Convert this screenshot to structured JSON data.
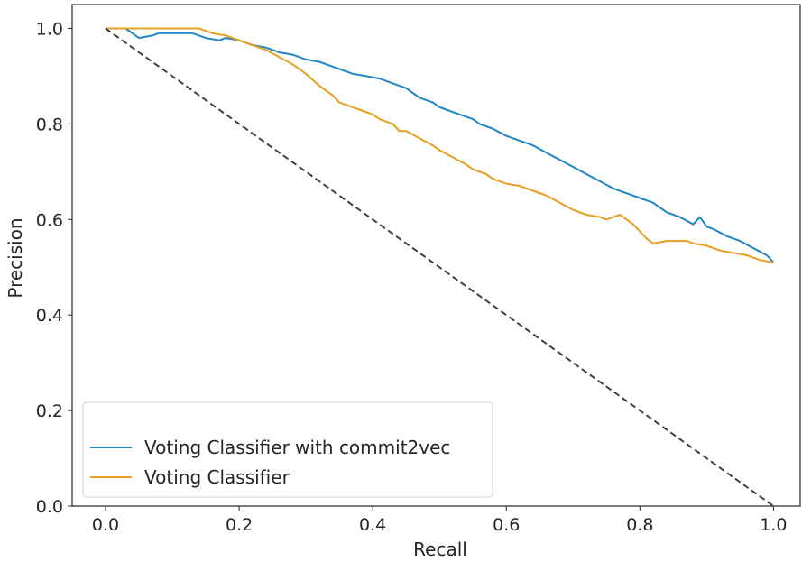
{
  "chart_data": {
    "type": "line",
    "title": "",
    "xlabel": "Recall",
    "ylabel": "Precision",
    "xlim": [
      -0.05,
      1.04
    ],
    "ylim": [
      0.0,
      1.05
    ],
    "grid": false,
    "legend_position": "lower-left",
    "x_ticks": [
      0.0,
      0.2,
      0.4,
      0.6,
      0.8,
      1.0
    ],
    "x_tick_labels": [
      "0.0",
      "0.2",
      "0.4",
      "0.6",
      "0.8",
      "1.0"
    ],
    "y_ticks": [
      0.0,
      0.2,
      0.4,
      0.6,
      0.8,
      1.0
    ],
    "y_tick_labels": [
      "0.0",
      "0.2",
      "0.4",
      "0.6",
      "0.8",
      "1.0"
    ],
    "series": [
      {
        "name": "Voting Classifier with commit2vec",
        "color": "#1f86c1",
        "x": [
          0.0,
          0.03,
          0.05,
          0.07,
          0.08,
          0.1,
          0.13,
          0.14,
          0.15,
          0.17,
          0.18,
          0.2,
          0.21,
          0.22,
          0.24,
          0.26,
          0.28,
          0.3,
          0.32,
          0.34,
          0.36,
          0.37,
          0.39,
          0.41,
          0.43,
          0.45,
          0.46,
          0.47,
          0.49,
          0.5,
          0.51,
          0.53,
          0.55,
          0.56,
          0.58,
          0.6,
          0.62,
          0.64,
          0.66,
          0.68,
          0.7,
          0.72,
          0.74,
          0.76,
          0.78,
          0.8,
          0.82,
          0.84,
          0.86,
          0.88,
          0.89,
          0.9,
          0.91,
          0.93,
          0.95,
          0.97,
          0.99,
          1.0
        ],
        "y": [
          1.0,
          1.0,
          0.98,
          0.985,
          0.99,
          0.99,
          0.99,
          0.985,
          0.98,
          0.975,
          0.98,
          0.975,
          0.97,
          0.965,
          0.96,
          0.95,
          0.945,
          0.935,
          0.93,
          0.92,
          0.91,
          0.905,
          0.9,
          0.895,
          0.885,
          0.875,
          0.865,
          0.855,
          0.845,
          0.835,
          0.83,
          0.82,
          0.81,
          0.8,
          0.79,
          0.775,
          0.765,
          0.755,
          0.74,
          0.725,
          0.71,
          0.695,
          0.68,
          0.665,
          0.655,
          0.645,
          0.635,
          0.615,
          0.605,
          0.59,
          0.605,
          0.585,
          0.58,
          0.565,
          0.555,
          0.54,
          0.525,
          0.51
        ]
      },
      {
        "name": "Voting Classifier",
        "color": "#e69f22",
        "x": [
          0.0,
          0.05,
          0.1,
          0.14,
          0.16,
          0.18,
          0.2,
          0.22,
          0.24,
          0.26,
          0.28,
          0.3,
          0.32,
          0.34,
          0.35,
          0.36,
          0.38,
          0.4,
          0.41,
          0.43,
          0.44,
          0.45,
          0.47,
          0.49,
          0.5,
          0.52,
          0.54,
          0.55,
          0.57,
          0.58,
          0.6,
          0.62,
          0.64,
          0.66,
          0.68,
          0.7,
          0.72,
          0.74,
          0.75,
          0.77,
          0.78,
          0.79,
          0.8,
          0.81,
          0.82,
          0.84,
          0.85,
          0.87,
          0.88,
          0.9,
          0.92,
          0.94,
          0.96,
          0.98,
          1.0
        ],
        "y": [
          1.0,
          1.0,
          1.0,
          1.0,
          0.99,
          0.985,
          0.975,
          0.965,
          0.955,
          0.94,
          0.925,
          0.905,
          0.88,
          0.86,
          0.845,
          0.84,
          0.83,
          0.82,
          0.81,
          0.8,
          0.785,
          0.785,
          0.77,
          0.755,
          0.745,
          0.73,
          0.715,
          0.705,
          0.695,
          0.685,
          0.675,
          0.67,
          0.66,
          0.65,
          0.635,
          0.62,
          0.61,
          0.605,
          0.6,
          0.61,
          0.6,
          0.59,
          0.575,
          0.56,
          0.55,
          0.555,
          0.555,
          0.555,
          0.55,
          0.545,
          0.535,
          0.53,
          0.525,
          0.515,
          0.51
        ]
      },
      {
        "name": "",
        "color": "#404040",
        "style": "dashed",
        "x": [
          0.0,
          1.0
        ],
        "y": [
          1.0,
          0.0
        ]
      }
    ]
  }
}
